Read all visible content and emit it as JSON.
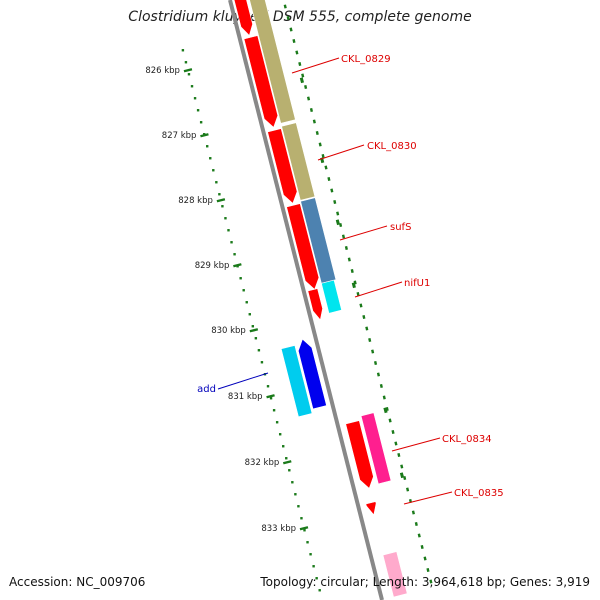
{
  "title": "Clostridium kluyveri DSM 555, complete genome",
  "footer": {
    "accession": "Accession: NC_009706",
    "summary": "Topology: circular; Length: 3,964,618 bp; Genes: 3,919"
  },
  "colors": {
    "backbone": "#888888",
    "tick_green": "#1a7a1a",
    "gene_red": "#ff0000",
    "cds_khaki": "#b8b070",
    "cds_blue": "#4d82b0",
    "cyan": "#00e5ee",
    "deep_blue": "#0000ee",
    "sky": "#00ccee",
    "magenta": "#ff1f8f",
    "pink": "#ffaacc",
    "label_red": "#dd0000",
    "label_blue": "#0000bb"
  },
  "kbp_labels": [
    "826 kbp",
    "827 kbp",
    "828 kbp",
    "829 kbp",
    "830 kbp",
    "831 kbp",
    "832 kbp",
    "833 kbp"
  ],
  "gene_labels": [
    {
      "text": "CKL_0829",
      "color_key": "label_red"
    },
    {
      "text": "CKL_0830",
      "color_key": "label_red"
    },
    {
      "text": "sufS",
      "color_key": "label_red"
    },
    {
      "text": "nifU1",
      "color_key": "label_red"
    },
    {
      "text": "add",
      "color_key": "label_blue"
    },
    {
      "text": "CKL_0834",
      "color_key": "label_red"
    },
    {
      "text": "CKL_0835",
      "color_key": "label_red"
    }
  ]
}
